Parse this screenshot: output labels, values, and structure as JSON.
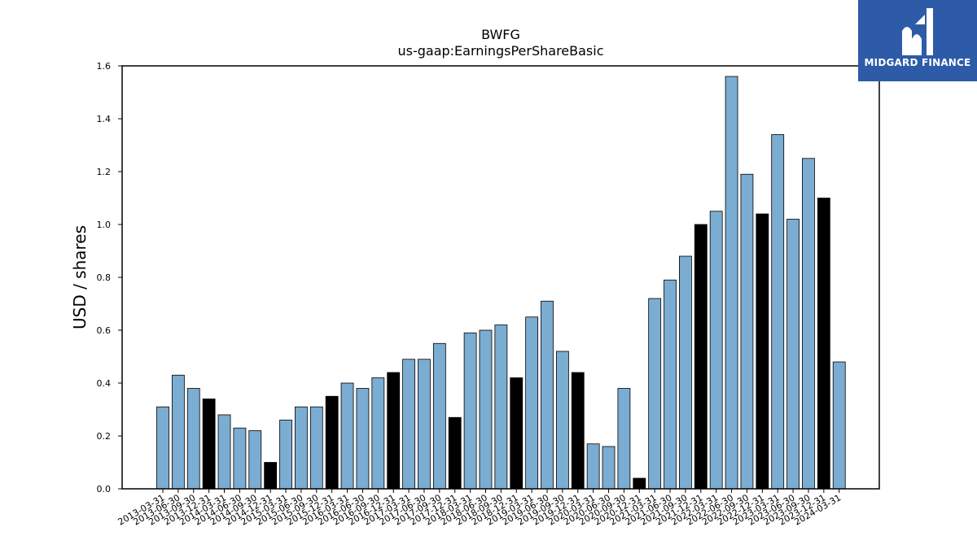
{
  "logo": {
    "text": "MIDGARD FINANCE",
    "background": "#2d5ba8"
  },
  "chart_data": {
    "type": "bar",
    "title": "BWFG",
    "subtitle": "us-gaap:EarningsPerShareBasic",
    "xlabel": "",
    "ylabel": "USD / shares",
    "ylim": [
      0,
      1.6
    ],
    "yticks": [
      "0.0",
      "0.2",
      "0.4",
      "0.6",
      "0.8",
      "1.0",
      "1.2",
      "1.4",
      "1.6"
    ],
    "grid": false,
    "colors": {
      "quarter": "#7bacd1",
      "year_end": "#000000",
      "edge": "#000000"
    },
    "categories": [
      "2013-03-31",
      "2013-06-30",
      "2013-09-30",
      "2013-12-31",
      "2014-03-31",
      "2014-06-30",
      "2014-09-30",
      "2014-12-31",
      "2015-03-31",
      "2015-06-30",
      "2015-09-30",
      "2015-12-31",
      "2016-03-31",
      "2016-06-30",
      "2016-09-30",
      "2016-12-31",
      "2017-03-31",
      "2017-06-30",
      "2017-09-30",
      "2017-12-31",
      "2018-03-31",
      "2018-06-30",
      "2018-09-30",
      "2018-12-31",
      "2019-03-31",
      "2019-06-30",
      "2019-09-30",
      "2019-12-31",
      "2020-03-31",
      "2020-06-30",
      "2020-09-30",
      "2020-12-31",
      "2021-03-31",
      "2021-06-30",
      "2021-09-30",
      "2021-12-31",
      "2022-03-31",
      "2022-06-30",
      "2022-09-30",
      "2022-12-31",
      "2023-03-31",
      "2023-06-30",
      "2023-09-30",
      "2023-12-31",
      "2024-03-31"
    ],
    "values": [
      0.31,
      0.43,
      0.38,
      0.34,
      0.28,
      0.23,
      0.22,
      0.1,
      0.26,
      0.31,
      0.31,
      0.35,
      0.4,
      0.38,
      0.42,
      0.44,
      0.49,
      0.49,
      0.55,
      0.27,
      0.59,
      0.6,
      0.62,
      0.42,
      0.65,
      0.71,
      0.52,
      0.44,
      0.17,
      0.16,
      0.38,
      0.04,
      0.72,
      0.79,
      0.88,
      1.0,
      1.05,
      1.56,
      1.19,
      1.04,
      1.34,
      1.02,
      1.25,
      1.1,
      0.48
    ]
  }
}
